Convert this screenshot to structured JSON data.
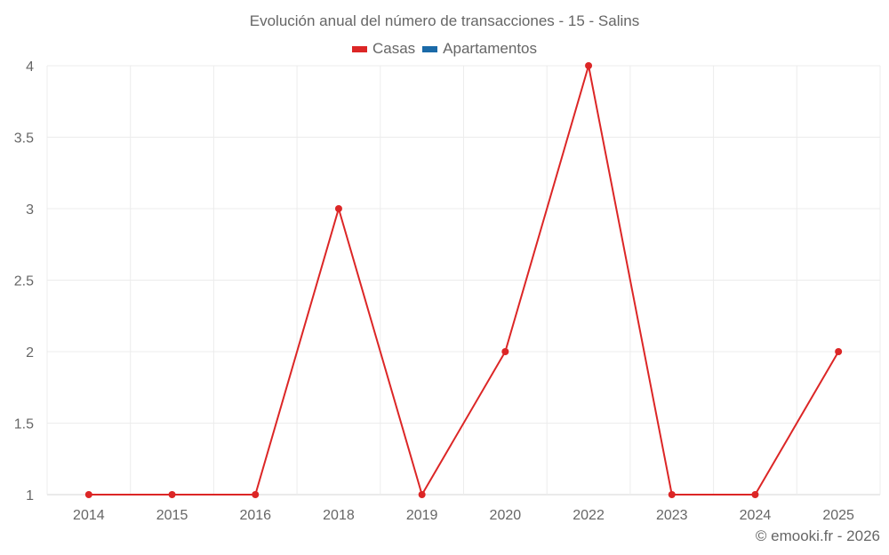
{
  "title": "Evolución anual del número de transacciones - 15 - Salins",
  "legend": [
    {
      "label": "Casas",
      "color": "#dc2626"
    },
    {
      "label": "Apartamentos",
      "color": "#1a6aa8"
    }
  ],
  "credit": "© emooki.fr - 2026",
  "chart_data": {
    "type": "line",
    "title": "Evolución anual del número de transacciones - 15 - Salins",
    "categories": [
      "2014",
      "2015",
      "2016",
      "2018",
      "2019",
      "2020",
      "2022",
      "2023",
      "2024",
      "2025"
    ],
    "series": [
      {
        "name": "Casas",
        "color": "#dc2626",
        "values": [
          1,
          1,
          1,
          3,
          1,
          2,
          4,
          1,
          1,
          2
        ]
      },
      {
        "name": "Apartamentos",
        "color": "#1a6aa8",
        "values": []
      }
    ],
    "yticks": [
      "1",
      "1.5",
      "2",
      "2.5",
      "3",
      "3.5",
      "4"
    ],
    "ylim": [
      1,
      4
    ],
    "xlabel": "",
    "ylabel": "",
    "grid": true,
    "legend_position": "top"
  }
}
